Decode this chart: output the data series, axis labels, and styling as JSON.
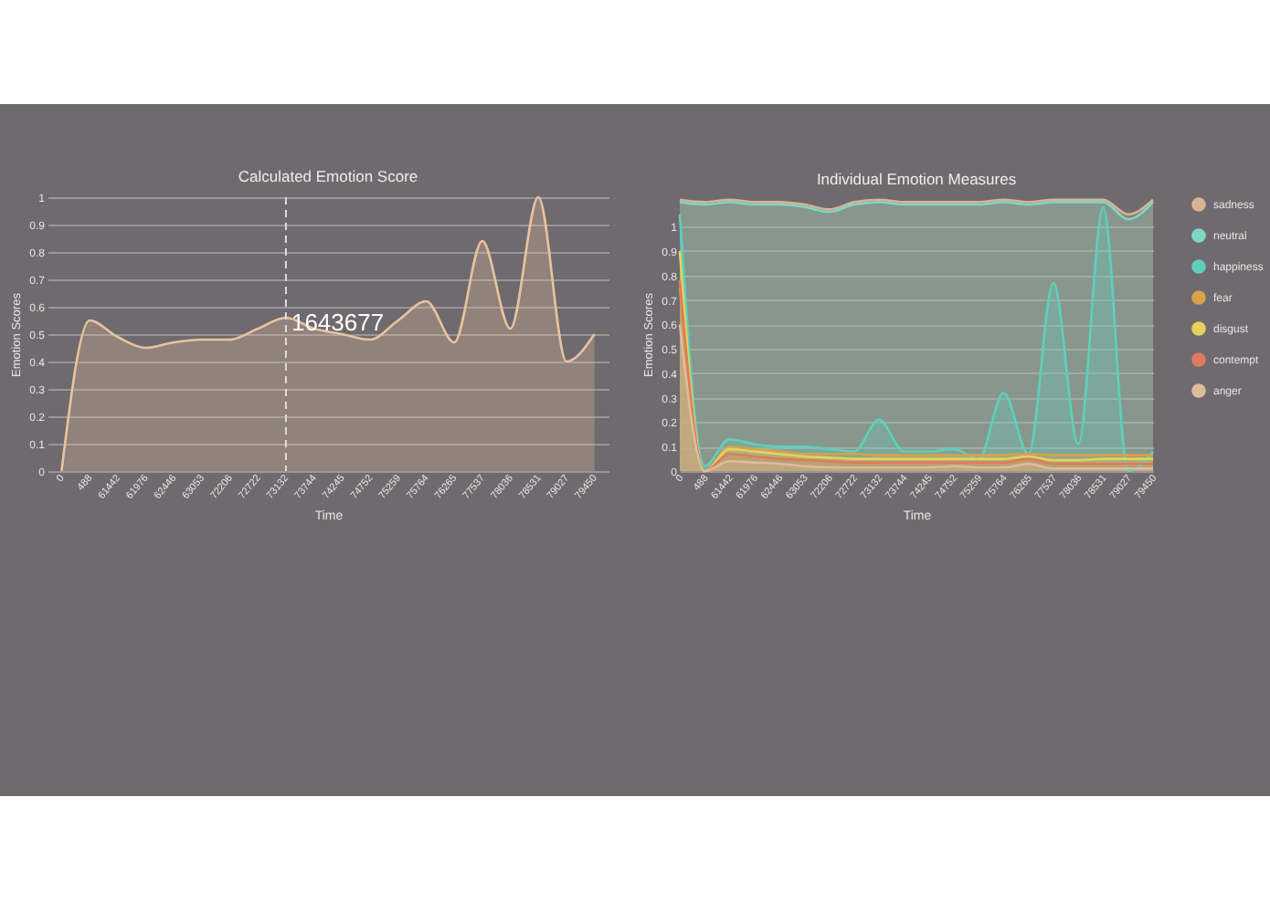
{
  "chart_data": [
    {
      "type": "area",
      "title": "Calculated Emotion Score",
      "xlabel": "Time",
      "ylabel": "Emotion Scores",
      "categories": [
        "0",
        "488",
        "61442",
        "61976",
        "62446",
        "63053",
        "72206",
        "72722",
        "73132",
        "73744",
        "74245",
        "74752",
        "75259",
        "75764",
        "76265",
        "77537",
        "78036",
        "78531",
        "79027",
        "79450"
      ],
      "series": [
        {
          "color": "#e8c39e",
          "values": [
            0,
            0.55,
            0.49,
            0.45,
            0.47,
            0.48,
            0.48,
            0.52,
            0.56,
            0.52,
            0.5,
            0.48,
            0.55,
            0.62,
            0.47,
            0.84,
            0.52,
            1.0,
            0.4,
            0.5
          ]
        }
      ],
      "ylim": [
        0,
        1
      ],
      "yticks": [
        0,
        0.1,
        0.2,
        0.3,
        0.4,
        0.5,
        0.6,
        0.7,
        0.8,
        0.9,
        1
      ],
      "grid": "y",
      "marker": "none",
      "ref_lines": [
        {
          "axis": "x",
          "value": "73132",
          "label": "1643677",
          "line_style": "dashed"
        }
      ]
    },
    {
      "type": "area",
      "title": "Individual Emotion Measures",
      "xlabel": "Time",
      "ylabel": "Emotion Scores",
      "categories": [
        "0",
        "488",
        "61442",
        "61976",
        "62446",
        "63053",
        "72206",
        "72722",
        "73132",
        "73744",
        "74245",
        "74752",
        "75259",
        "75764",
        "76265",
        "77537",
        "78036",
        "78531",
        "79027",
        "79450"
      ],
      "series": [
        {
          "name": "sadness",
          "color": "#d9b294",
          "values": [
            1.11,
            1.1,
            1.11,
            1.1,
            1.1,
            1.09,
            1.07,
            1.1,
            1.11,
            1.1,
            1.1,
            1.1,
            1.1,
            1.11,
            1.1,
            1.11,
            1.11,
            1.11,
            1.05,
            1.11
          ]
        },
        {
          "name": "neutral",
          "color": "#7fd6c4",
          "values": [
            1.1,
            1.09,
            1.1,
            1.09,
            1.09,
            1.08,
            1.06,
            1.09,
            1.1,
            1.09,
            1.09,
            1.09,
            1.09,
            1.1,
            1.09,
            1.1,
            1.1,
            1.1,
            1.03,
            1.1
          ]
        },
        {
          "name": "happiness",
          "color": "#5fcfbd",
          "values": [
            1.05,
            0.02,
            0.13,
            0.11,
            0.1,
            0.1,
            0.09,
            0.08,
            0.21,
            0.08,
            0.08,
            0.09,
            0.05,
            0.32,
            0.07,
            0.77,
            0.11,
            1.08,
            0,
            0.08
          ]
        },
        {
          "name": "fear",
          "color": "#d6a24c",
          "values": [
            0.75,
            0,
            0.1,
            0.09,
            0.08,
            0.07,
            0.07,
            0.07,
            0.065,
            0.065,
            0.065,
            0.065,
            0.065,
            0.065,
            0.07,
            0.065,
            0.065,
            0.065,
            0.065,
            0.065
          ]
        },
        {
          "name": "disgust",
          "color": "#e6d25c",
          "values": [
            0.9,
            0,
            0.09,
            0.08,
            0.07,
            0.06,
            0.055,
            0.05,
            0.05,
            0.05,
            0.05,
            0.05,
            0.05,
            0.05,
            0.06,
            0.045,
            0.045,
            0.05,
            0.05,
            0.05
          ]
        },
        {
          "name": "contempt",
          "color": "#e07a5f",
          "values": [
            0.78,
            0,
            0.07,
            0.06,
            0.05,
            0.045,
            0.04,
            0.035,
            0.035,
            0.035,
            0.035,
            0.035,
            0.035,
            0.035,
            0.05,
            0.03,
            0.03,
            0.03,
            0.03,
            0.03
          ]
        },
        {
          "name": "anger",
          "color": "#dcbc9e",
          "values": [
            0.6,
            0,
            0.04,
            0.035,
            0.03,
            0.02,
            0.015,
            0.015,
            0.015,
            0.015,
            0.015,
            0.02,
            0.015,
            0.015,
            0.03,
            0.01,
            0.01,
            0.01,
            0.01,
            0.01
          ]
        }
      ],
      "ylim": [
        0,
        1.12
      ],
      "yticks": [
        0,
        0.1,
        0.2,
        0.3,
        0.4,
        0.5,
        0.6,
        0.7,
        0.8,
        0.9,
        1
      ],
      "grid": "y",
      "marker": "none",
      "legend": "right"
    }
  ]
}
